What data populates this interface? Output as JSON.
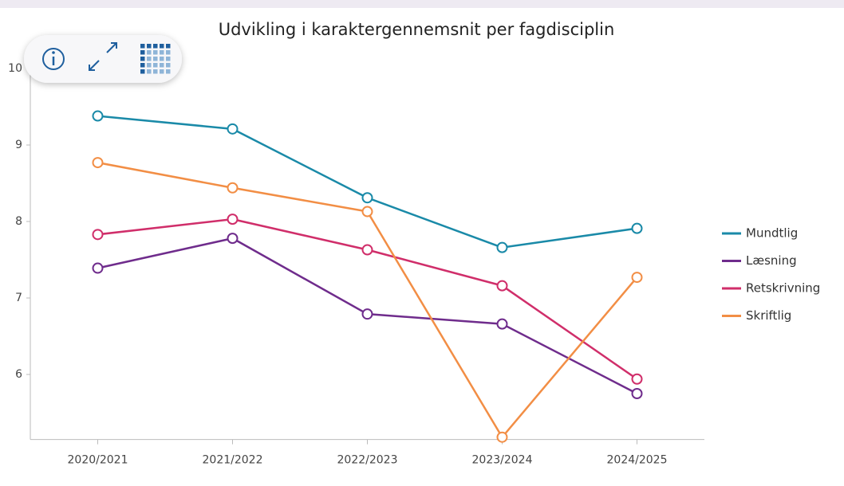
{
  "chart_data": {
    "type": "line",
    "title": "Udvikling i karaktergennemsnit per fagdisciplin",
    "categories": [
      "2020/2021",
      "2021/2022",
      "2022/2023",
      "2023/2024",
      "2024/2025"
    ],
    "series": [
      {
        "name": "Mundtlig",
        "color": "#1a8aa8",
        "values": [
          9.38,
          9.21,
          8.31,
          7.66,
          7.91
        ]
      },
      {
        "name": "Læsning",
        "color": "#6f2c8c",
        "values": [
          7.39,
          7.78,
          6.79,
          6.66,
          5.75
        ]
      },
      {
        "name": "Retskrivning",
        "color": "#d02e6a",
        "values": [
          7.83,
          8.03,
          7.63,
          7.16,
          5.94
        ]
      },
      {
        "name": "Skriftlig",
        "color": "#f28e45",
        "values": [
          8.77,
          8.44,
          8.13,
          5.18,
          7.27
        ]
      }
    ],
    "ylim": [
      5.15,
      10
    ],
    "yticks": [
      6,
      7,
      8,
      9,
      10
    ],
    "grid": false,
    "legend": "right"
  }
}
